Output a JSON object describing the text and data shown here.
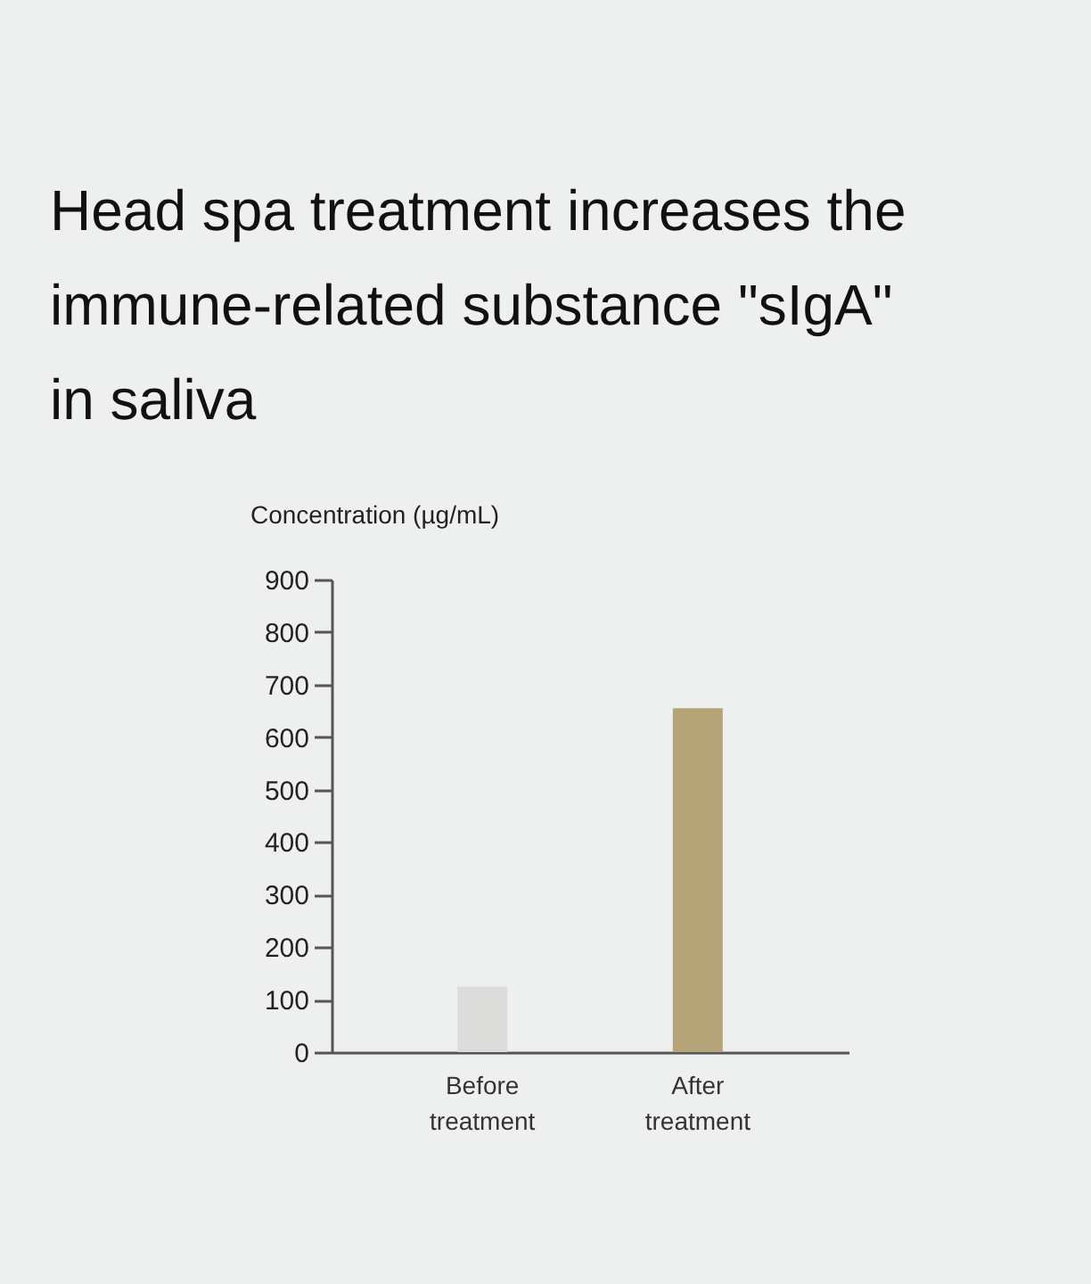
{
  "chart_data": {
    "type": "bar",
    "title": "Head spa treatment increases the immune-related substance \"sIgA\" in saliva",
    "ylabel": "Concentration (µg/mL)",
    "categories": [
      "Before treatment",
      "After treatment"
    ],
    "values": [
      125,
      655
    ],
    "colors": [
      "#dcdddb",
      "#b4a478"
    ],
    "ylim": [
      0,
      900
    ],
    "yticks": [
      0,
      100,
      200,
      300,
      400,
      500,
      600,
      700,
      800,
      900
    ],
    "grid": false
  }
}
